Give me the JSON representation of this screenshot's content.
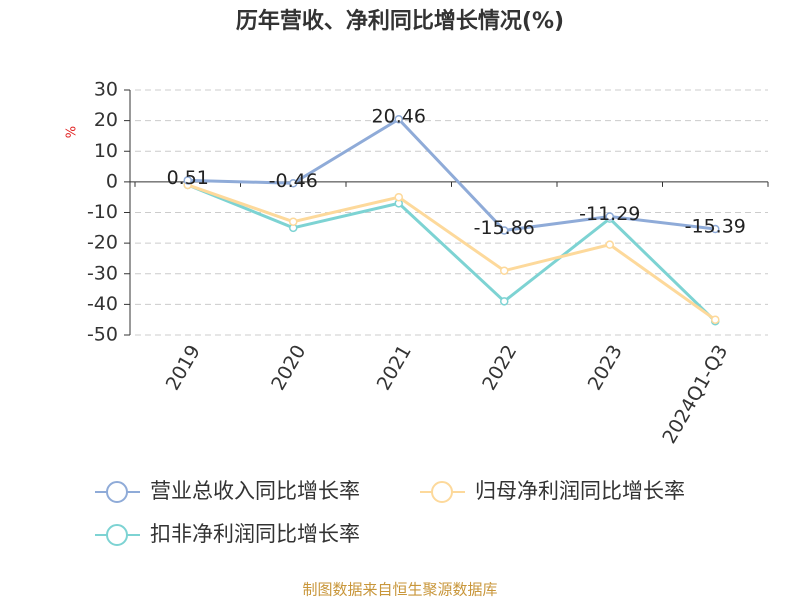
{
  "chart_data": {
    "type": "line",
    "title": "历年营收、净利同比增长情况(%)",
    "y_label": "%",
    "categories": [
      "2019",
      "2020",
      "2021",
      "2022",
      "2023",
      "2024Q1-Q3"
    ],
    "series": [
      {
        "name": "营业总收入同比增长率",
        "color": "#8fabd8",
        "values": [
          0.51,
          -0.46,
          20.46,
          -15.86,
          -11.29,
          -15.39
        ]
      },
      {
        "name": "归母净利润同比增长率",
        "color": "#fdd99b",
        "values": [
          -1,
          -13,
          -5,
          -29,
          -20.5,
          -45
        ]
      },
      {
        "name": "扣非净利润同比增长率",
        "color": "#7dd3d3",
        "values": [
          -1,
          -15,
          -7,
          -39,
          -12,
          -45.5
        ]
      }
    ],
    "ylim": [
      -50,
      30
    ],
    "yticks": [
      -50,
      -40,
      -30,
      -20,
      -10,
      0,
      10,
      20,
      30
    ],
    "grid": true,
    "source": "制图数据来自恒生聚源数据库"
  }
}
